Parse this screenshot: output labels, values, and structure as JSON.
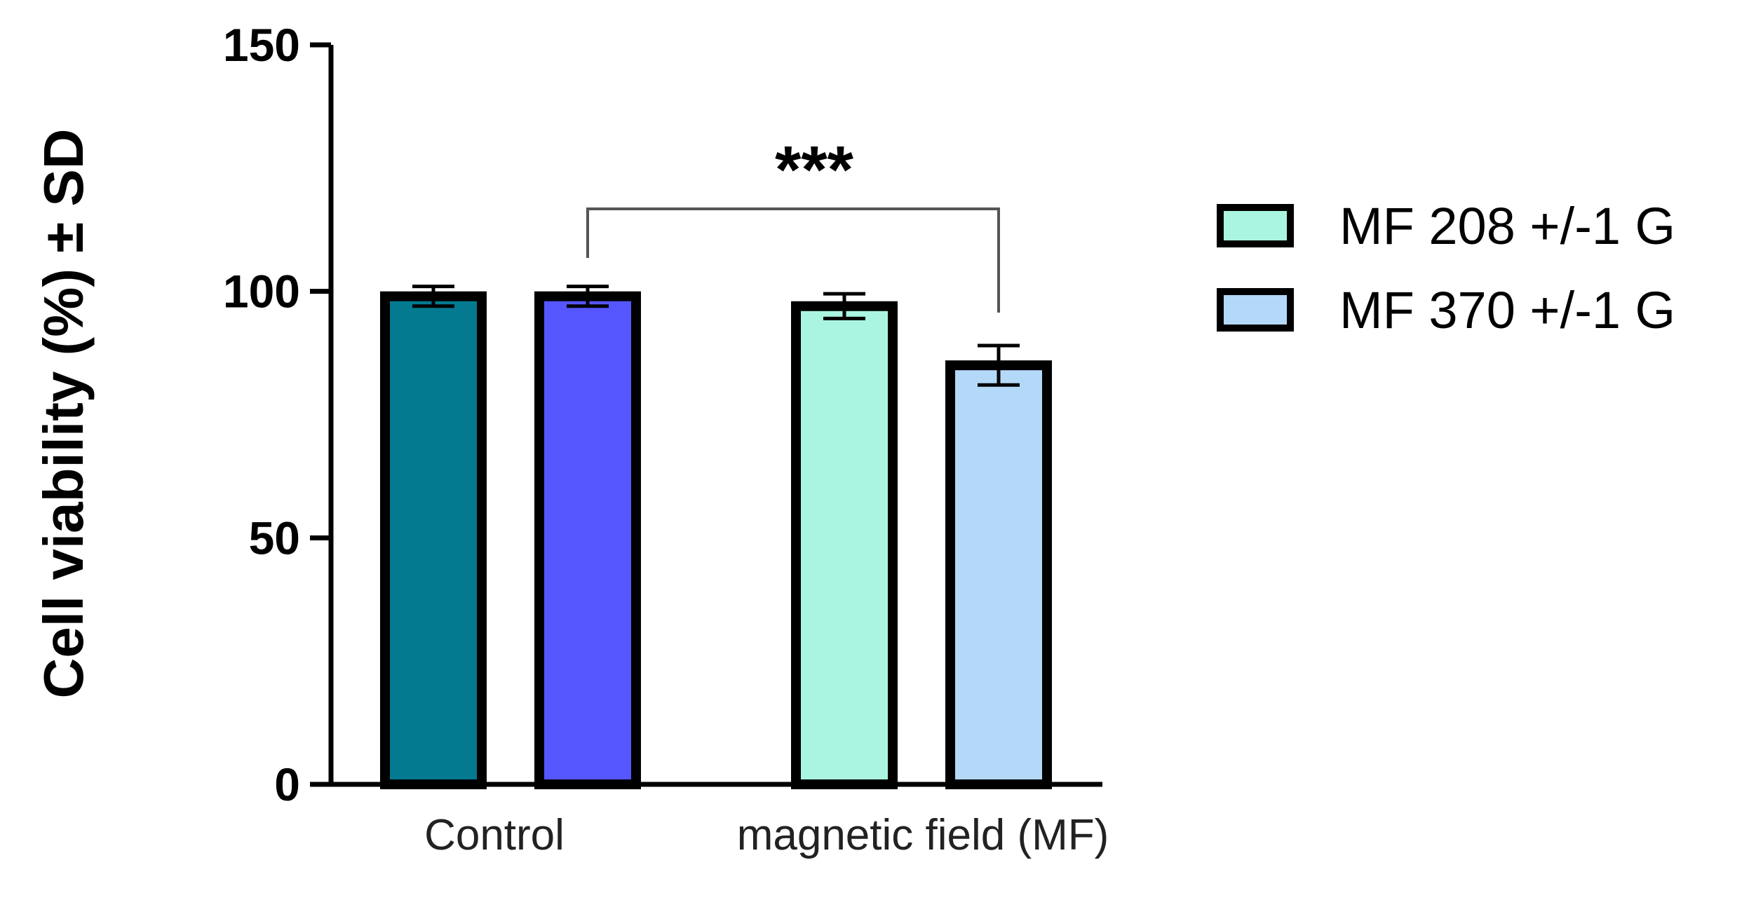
{
  "chart_data": {
    "type": "bar",
    "ylabel": "Cell viability (%)  ± SD",
    "xlabel": "",
    "ylim": [
      0,
      150
    ],
    "yticks": [
      0,
      50,
      100,
      150
    ],
    "grid": false,
    "legend_position": "right",
    "groups": [
      {
        "label": "Control",
        "bars": [
          {
            "value": 99,
            "error": 2,
            "color": "#037A90"
          },
          {
            "value": 99,
            "error": 2,
            "color": "#5656FF"
          }
        ]
      },
      {
        "label": "magnetic field (MF)",
        "bars": [
          {
            "value": 97,
            "error": 2.5,
            "color": "#AAF5E0",
            "series": "MF 208 +/-1 G"
          },
          {
            "value": 85,
            "error": 4,
            "color": "#B4D8F8",
            "series": "MF 370 +/-1 G"
          }
        ]
      }
    ],
    "legend": [
      {
        "label": "MF 208 +/-1 G",
        "color": "#AAF5E0"
      },
      {
        "label": "MF 370 +/-1 G",
        "color": "#B4D8F8"
      }
    ],
    "annotations": [
      {
        "type": "significance",
        "label": "***",
        "from_bar": [
          0,
          1
        ],
        "to_bar": [
          1,
          1
        ]
      }
    ]
  }
}
